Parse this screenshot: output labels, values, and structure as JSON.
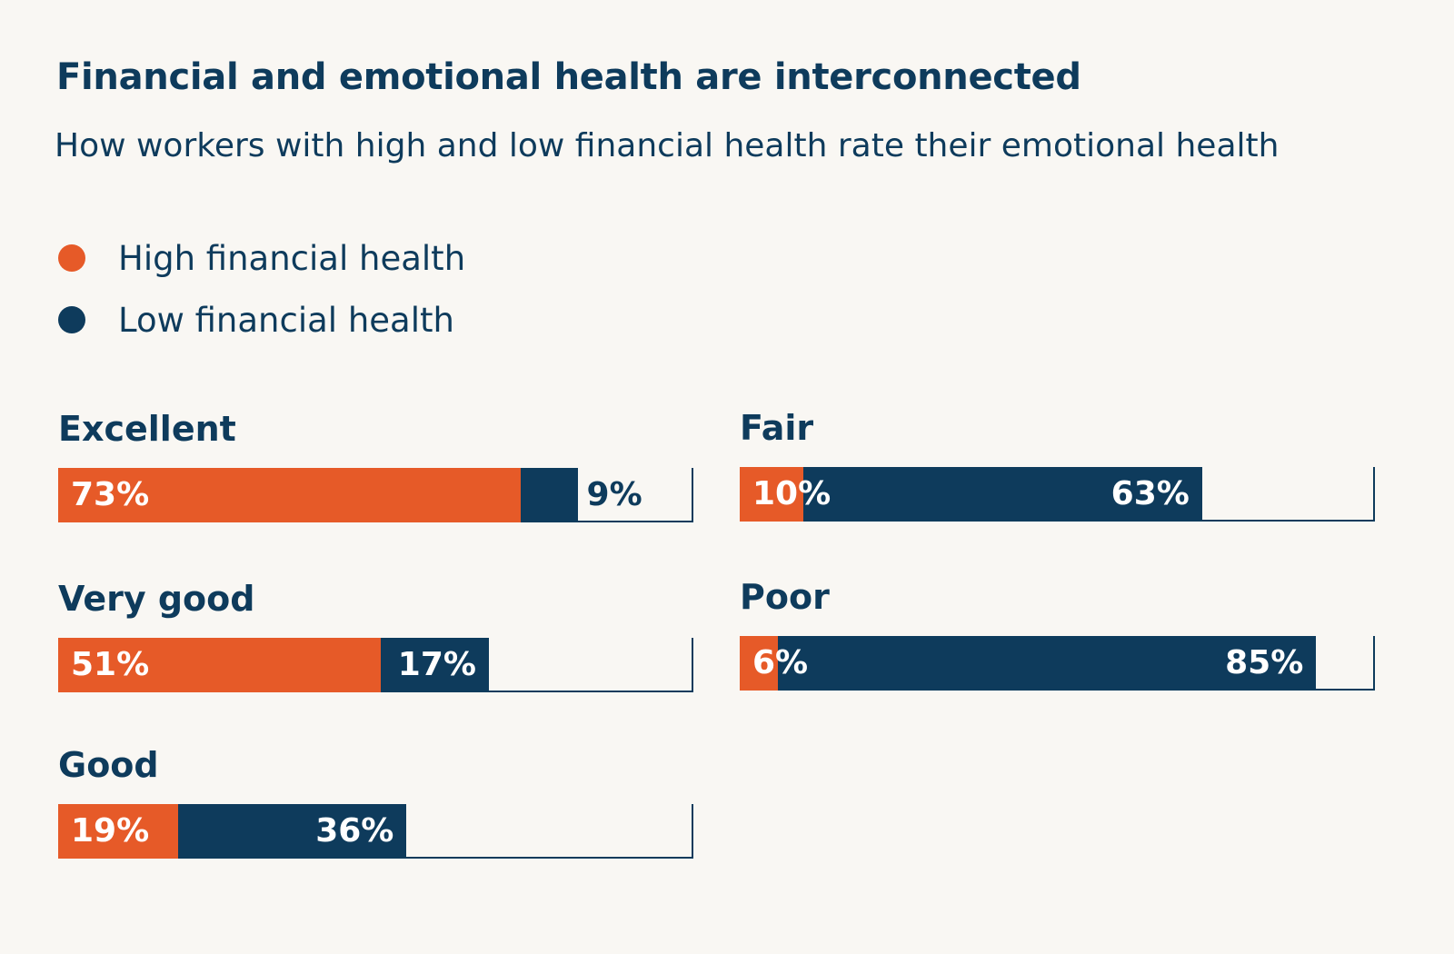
{
  "colors": {
    "high": "#e65a28",
    "low": "#0e3b5c",
    "background": "#f9f7f3",
    "text_on_bar": "#ffffff",
    "text": "#0e3b5c"
  },
  "chart_data": {
    "type": "bar",
    "orientation": "horizontal",
    "stacked": true,
    "title": "Financial and emotional health are interconnected",
    "subtitle": "How workers with high and low financial health rate their emotional health",
    "legend": [
      "High financial health",
      "Low financial health"
    ],
    "legend_position": "top-left",
    "xlim": [
      0,
      100
    ],
    "unit": "%",
    "categories": [
      "Excellent",
      "Very good",
      "Good",
      "Fair",
      "Poor"
    ],
    "series": [
      {
        "name": "High financial health",
        "values": [
          73,
          51,
          19,
          10,
          6
        ],
        "labels": [
          "73%",
          "51%",
          "19%",
          "10%",
          "6%"
        ]
      },
      {
        "name": "Low financial health",
        "values": [
          9,
          17,
          36,
          63,
          85
        ],
        "labels": [
          "9%",
          "17%",
          "36%",
          "63%",
          "85%"
        ]
      }
    ]
  }
}
